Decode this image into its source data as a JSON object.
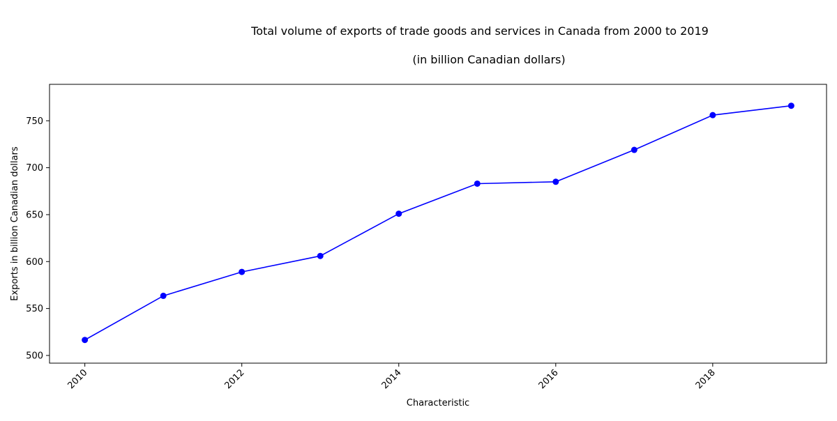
{
  "chart_data": {
    "type": "line",
    "title": "Total volume of exports of trade goods and services in Canada from 2000 to 2019",
    "subtitle": "(in billion Canadian dollars)",
    "xlabel": "Characteristic",
    "ylabel": "Exports in billion Canadian dollars",
    "x": [
      2010,
      2011,
      2012,
      2013,
      2014,
      2015,
      2016,
      2017,
      2018,
      2019
    ],
    "series": [
      {
        "values": [
          516.5,
          563.5,
          589,
          606,
          651,
          683,
          685,
          719,
          756,
          766
        ]
      }
    ],
    "xlim": [
      2009.55,
      2019.45
    ],
    "ylim": [
      491.8,
      788.8
    ],
    "x_ticks": [
      2010,
      2012,
      2014,
      2016,
      2018
    ],
    "y_ticks": [
      500,
      550,
      600,
      650,
      700,
      750
    ],
    "grid": false,
    "colors": {
      "line": "#0000ff",
      "marker": "#0000ff"
    }
  }
}
